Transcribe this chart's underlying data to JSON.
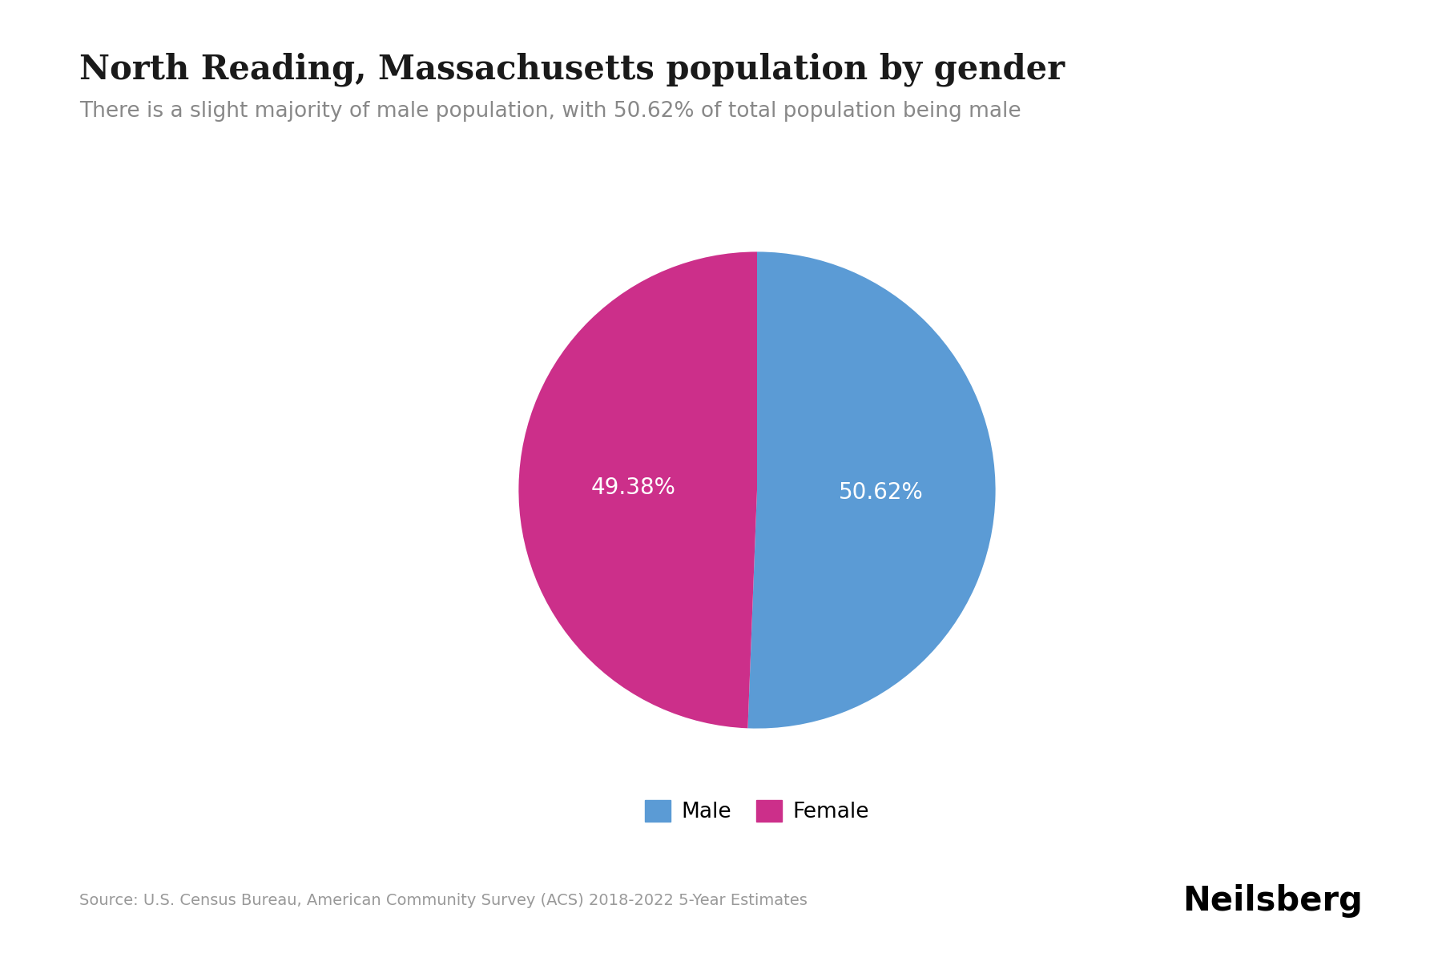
{
  "title": "North Reading, Massachusetts population by gender",
  "subtitle": "There is a slight majority of male population, with 50.62% of total population being male",
  "values": [
    50.62,
    49.38
  ],
  "labels": [
    "Male",
    "Female"
  ],
  "colors": [
    "#5b9bd5",
    "#cc2f8a"
  ],
  "autopct_labels": [
    "50.62%",
    "49.38%"
  ],
  "legend_labels": [
    "Male",
    "Female"
  ],
  "source_text": "Source: U.S. Census Bureau, American Community Survey (ACS) 2018-2022 5-Year Estimates",
  "brand_text": "Neilsberg",
  "background_color": "#ffffff",
  "title_fontsize": 30,
  "subtitle_fontsize": 19,
  "autopct_fontsize": 20,
  "legend_fontsize": 19,
  "source_fontsize": 14,
  "brand_fontsize": 30,
  "startangle": 90
}
